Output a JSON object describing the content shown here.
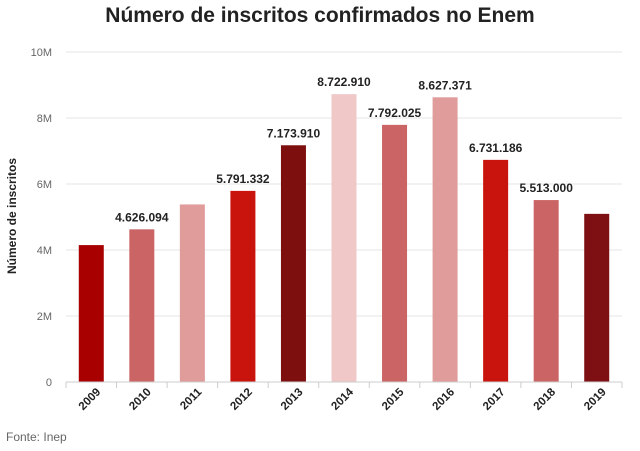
{
  "chart_data": {
    "type": "bar",
    "title": "Número de inscritos confirmados no Enem",
    "xlabel": "",
    "ylabel": "Número de inscritos",
    "ylim": [
      0,
      10000000
    ],
    "yticks": [
      0,
      2000000,
      4000000,
      6000000,
      8000000,
      10000000
    ],
    "ytick_labels": [
      "0",
      "2M",
      "4M",
      "6M",
      "8M",
      "10M"
    ],
    "categories": [
      "2009",
      "2010",
      "2011",
      "2012",
      "2013",
      "2014",
      "2015",
      "2016",
      "2017",
      "2018",
      "2019"
    ],
    "values": [
      4148721,
      4626094,
      5380857,
      5791332,
      7173910,
      8722910,
      7792025,
      8627371,
      6731186,
      5513000,
      5095308
    ],
    "data_labels": [
      "",
      "4.626.094",
      "",
      "5.791.332",
      "7.173.910",
      "8.722.910",
      "7.792.025",
      "8.627.371",
      "6.731.186",
      "5.513.000",
      ""
    ],
    "colors": [
      "#a80000",
      "#cb6464",
      "#e09b9b",
      "#c8140c",
      "#7e0f0f",
      "#f0c8c8",
      "#cb6464",
      "#e09b9b",
      "#c8140c",
      "#cb6464",
      "#7e0f13"
    ],
    "grid": true
  },
  "source": "Fonte: Inep"
}
